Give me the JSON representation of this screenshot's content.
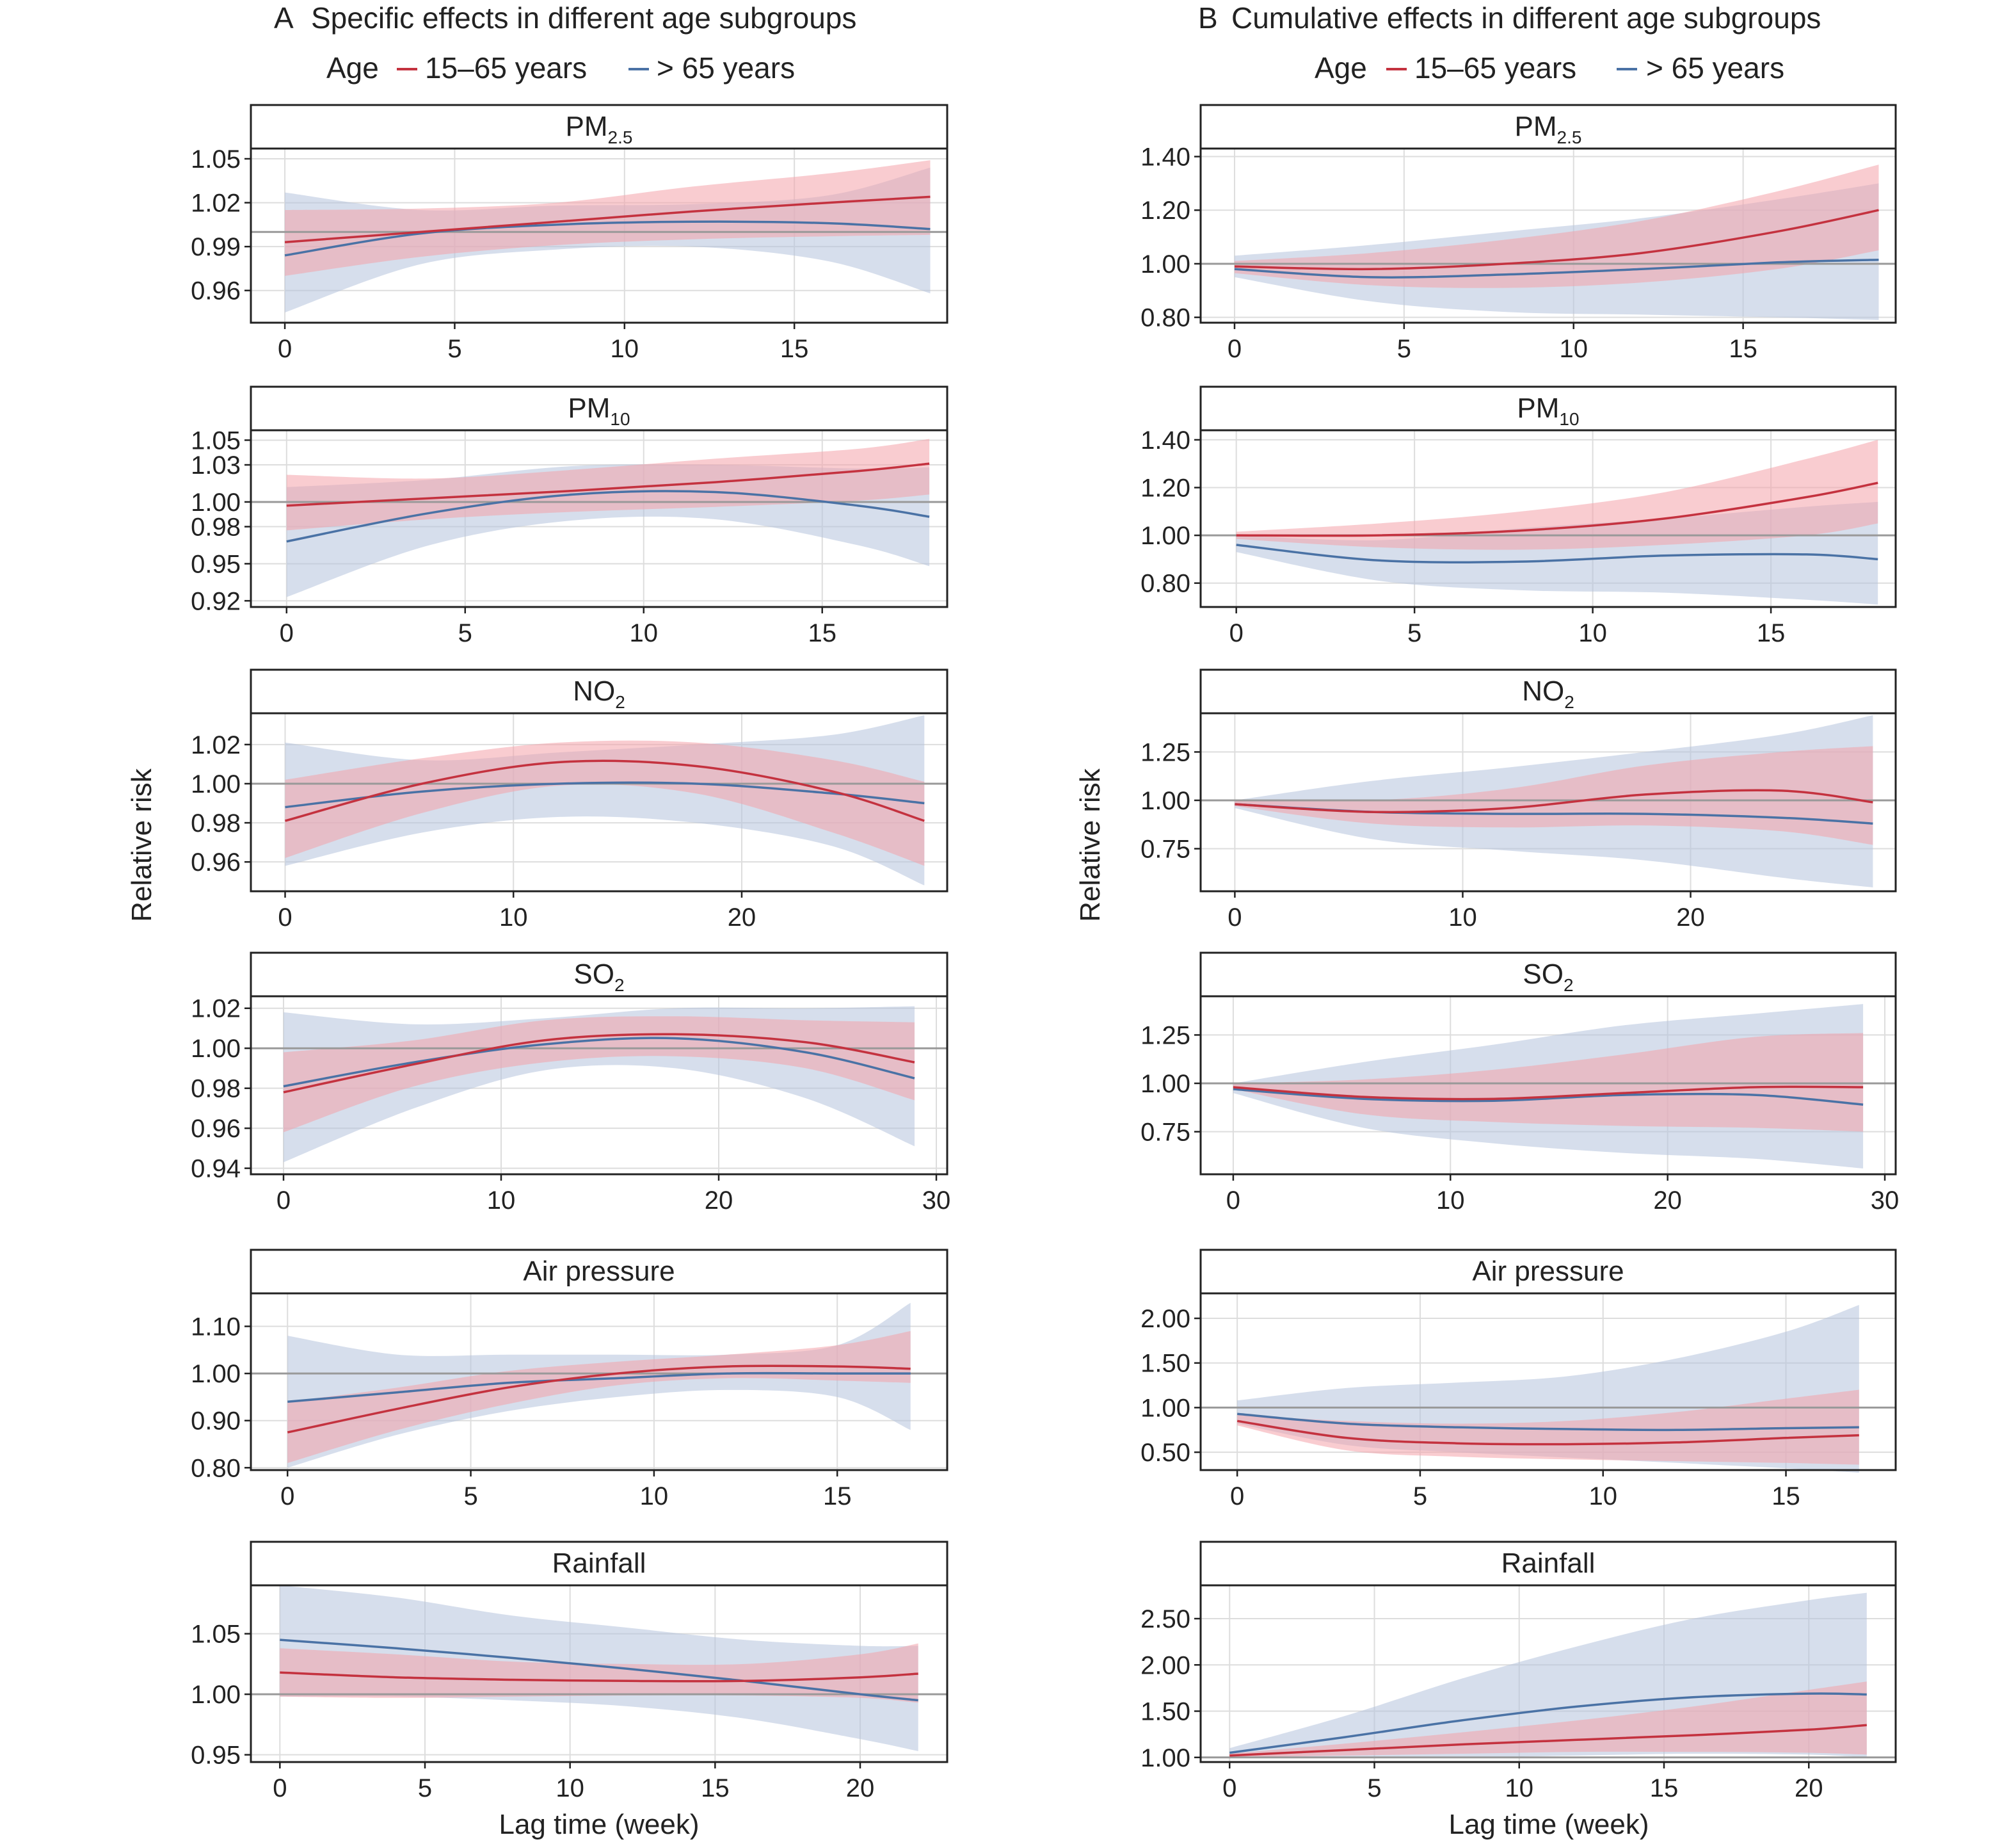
{
  "figure": {
    "ylabel": "Relative risk",
    "xlabel": "Lag time (week)"
  },
  "columns": [
    {
      "label": "A",
      "title": "Specific effects in different age subgroups"
    },
    {
      "label": "B",
      "title": "Cumulative effects in different age subgroups"
    }
  ],
  "legend": {
    "title": "Age",
    "items": [
      {
        "label": "15–65 years",
        "color": "#c4323f"
      },
      {
        "label": "> 65 years",
        "color": "#4a72a5"
      }
    ]
  },
  "colors": {
    "young_line": "#c4323f",
    "young_band": "#f4a3aa",
    "old_line": "#4a72a5",
    "old_band": "#b4c3dc",
    "reference_line": "#999999",
    "grid": "#dddddd"
  },
  "chart_data": [
    {
      "type": "line",
      "column": "A",
      "title": "PM",
      "title_sub": "2.5",
      "xlim": [
        -1,
        19.5
      ],
      "ylim": [
        0.938,
        1.057
      ],
      "xticks": [
        0,
        5,
        10,
        15
      ],
      "yticks": [
        0.96,
        0.99,
        1.02,
        1.05
      ],
      "ytick_decimals": 2,
      "reference": 1.0,
      "x": [
        0,
        4,
        8,
        12,
        16,
        19
      ],
      "series": [
        {
          "name": "15–65 years",
          "values": [
            0.993,
            1.0,
            1.007,
            1.014,
            1.02,
            1.024
          ],
          "lower": [
            0.97,
            0.983,
            0.991,
            0.995,
            0.997,
            0.998
          ],
          "upper": [
            1.015,
            1.016,
            1.02,
            1.031,
            1.04,
            1.049
          ]
        },
        {
          "name": "> 65 years",
          "values": [
            0.984,
            0.999,
            1.005,
            1.007,
            1.006,
            1.002
          ],
          "lower": [
            0.945,
            0.978,
            0.988,
            0.99,
            0.98,
            0.958
          ],
          "upper": [
            1.027,
            1.015,
            1.018,
            1.019,
            1.025,
            1.044
          ]
        }
      ]
    },
    {
      "type": "line",
      "column": "B",
      "title": "PM",
      "title_sub": "2.5",
      "xlim": [
        -1,
        19.5
      ],
      "ylim": [
        0.78,
        1.43
      ],
      "xticks": [
        0,
        5,
        10,
        15
      ],
      "yticks": [
        0.8,
        1.0,
        1.2,
        1.4
      ],
      "ytick_decimals": 2,
      "reference": 1.0,
      "x": [
        0,
        4,
        8,
        12,
        16,
        19
      ],
      "series": [
        {
          "name": "15–65 years",
          "values": [
            0.99,
            0.98,
            1.0,
            1.04,
            1.12,
            1.2
          ],
          "lower": [
            0.965,
            0.92,
            0.91,
            0.93,
            0.98,
            1.05
          ],
          "upper": [
            1.01,
            1.04,
            1.09,
            1.16,
            1.27,
            1.37
          ]
        },
        {
          "name": "> 65 years",
          "values": [
            0.98,
            0.95,
            0.96,
            0.98,
            1.005,
            1.015
          ],
          "lower": [
            0.95,
            0.86,
            0.82,
            0.81,
            0.8,
            0.79
          ],
          "upper": [
            1.03,
            1.07,
            1.12,
            1.17,
            1.24,
            1.3
          ]
        }
      ]
    },
    {
      "type": "line",
      "column": "A",
      "title": "PM",
      "title_sub": "10",
      "xlim": [
        -1,
        18.5
      ],
      "ylim": [
        0.915,
        1.058
      ],
      "xticks": [
        0,
        5,
        10,
        15
      ],
      "yticks": [
        0.92,
        0.95,
        0.98,
        1.0,
        1.03,
        1.05
      ],
      "ytick_decimals": 2,
      "reference": 1.0,
      "x": [
        0,
        4,
        8,
        12,
        16,
        18
      ],
      "series": [
        {
          "name": "15–65 years",
          "values": [
            0.997,
            1.003,
            1.009,
            1.016,
            1.025,
            1.031
          ],
          "lower": [
            0.977,
            0.986,
            0.992,
            0.996,
            1.001,
            1.006
          ],
          "upper": [
            1.022,
            1.019,
            1.026,
            1.035,
            1.043,
            1.051
          ]
        },
        {
          "name": "> 65 years",
          "values": [
            0.968,
            0.991,
            1.006,
            1.008,
            0.997,
            0.988
          ],
          "lower": [
            0.923,
            0.965,
            0.985,
            0.986,
            0.965,
            0.948
          ],
          "upper": [
            1.012,
            1.018,
            1.029,
            1.03,
            1.027,
            1.028
          ]
        }
      ]
    },
    {
      "type": "line",
      "column": "B",
      "title": "PM",
      "title_sub": "10",
      "xlim": [
        -1,
        18.5
      ],
      "ylim": [
        0.7,
        1.44
      ],
      "xticks": [
        0,
        5,
        10,
        15
      ],
      "yticks": [
        0.8,
        1.0,
        1.2,
        1.4
      ],
      "ytick_decimals": 2,
      "reference": 1.0,
      "x": [
        0,
        4,
        8,
        12,
        16,
        18
      ],
      "series": [
        {
          "name": "15–65 years",
          "values": [
            1.0,
            1.0,
            1.02,
            1.07,
            1.16,
            1.22
          ],
          "lower": [
            0.985,
            0.95,
            0.94,
            0.96,
            1.0,
            1.05
          ],
          "upper": [
            1.015,
            1.05,
            1.1,
            1.18,
            1.32,
            1.4
          ]
        },
        {
          "name": "> 65 years",
          "values": [
            0.96,
            0.895,
            0.89,
            0.915,
            0.92,
            0.9
          ],
          "lower": [
            0.93,
            0.81,
            0.77,
            0.76,
            0.73,
            0.71
          ],
          "upper": [
            1.0,
            0.98,
            1.03,
            1.07,
            1.12,
            1.14
          ]
        }
      ]
    },
    {
      "type": "line",
      "column": "A",
      "title": "NO",
      "title_sub": "2",
      "xlim": [
        -1.5,
        29
      ],
      "ylim": [
        0.945,
        1.036
      ],
      "xticks": [
        0,
        10,
        20
      ],
      "yticks": [
        0.96,
        0.98,
        1.0,
        1.02
      ],
      "ytick_decimals": 2,
      "reference": 1.0,
      "x": [
        0,
        6,
        12,
        18,
        24,
        28
      ],
      "series": [
        {
          "name": "15–65 years",
          "values": [
            0.981,
            1.0,
            1.011,
            1.009,
            0.996,
            0.981
          ],
          "lower": [
            0.962,
            0.985,
            0.999,
            0.995,
            0.975,
            0.958
          ],
          "upper": [
            1.002,
            1.013,
            1.021,
            1.021,
            1.012,
            1.001
          ]
        },
        {
          "name": "> 65 years",
          "values": [
            0.988,
            0.996,
            1.0,
            1.0,
            0.995,
            0.99
          ],
          "lower": [
            0.958,
            0.975,
            0.983,
            0.98,
            0.968,
            0.948
          ],
          "upper": [
            1.021,
            1.012,
            1.016,
            1.02,
            1.025,
            1.035
          ]
        }
      ]
    },
    {
      "type": "line",
      "column": "B",
      "title": "NO",
      "title_sub": "2",
      "xlim": [
        -1.5,
        29
      ],
      "ylim": [
        0.53,
        1.45
      ],
      "xticks": [
        0,
        10,
        20
      ],
      "yticks": [
        0.75,
        1.0,
        1.25
      ],
      "ytick_decimals": 2,
      "reference": 1.0,
      "x": [
        0,
        6,
        12,
        18,
        24,
        28
      ],
      "series": [
        {
          "name": "15–65 years",
          "values": [
            0.98,
            0.94,
            0.96,
            1.03,
            1.05,
            0.99
          ],
          "lower": [
            0.97,
            0.88,
            0.86,
            0.87,
            0.84,
            0.77
          ],
          "upper": [
            1.0,
            1.0,
            1.06,
            1.18,
            1.25,
            1.28
          ]
        },
        {
          "name": "> 65 years",
          "values": [
            0.98,
            0.94,
            0.93,
            0.93,
            0.91,
            0.88
          ],
          "lower": [
            0.96,
            0.8,
            0.74,
            0.69,
            0.6,
            0.55
          ],
          "upper": [
            1.0,
            1.1,
            1.17,
            1.25,
            1.34,
            1.44
          ]
        }
      ]
    },
    {
      "type": "line",
      "column": "A",
      "title": "SO",
      "title_sub": "2",
      "xlim": [
        -1.5,
        30.5
      ],
      "ylim": [
        0.937,
        1.026
      ],
      "xticks": [
        0,
        10,
        20,
        30
      ],
      "yticks": [
        0.94,
        0.96,
        0.98,
        1.0,
        1.02
      ],
      "ytick_decimals": 2,
      "reference": 1.0,
      "x": [
        0,
        6,
        12,
        18,
        24,
        29
      ],
      "series": [
        {
          "name": "15–65 years",
          "values": [
            0.978,
            0.992,
            1.004,
            1.007,
            1.003,
            0.993
          ],
          "lower": [
            0.958,
            0.981,
            0.993,
            0.996,
            0.99,
            0.974
          ],
          "upper": [
            0.998,
            1.004,
            1.014,
            1.016,
            1.014,
            1.013
          ]
        },
        {
          "name": "> 65 years",
          "values": [
            0.981,
            0.993,
            1.002,
            1.005,
            0.998,
            0.985
          ],
          "lower": [
            0.943,
            0.97,
            0.989,
            0.99,
            0.975,
            0.951
          ],
          "upper": [
            1.018,
            1.012,
            1.015,
            1.02,
            1.02,
            1.021
          ]
        }
      ]
    },
    {
      "type": "line",
      "column": "B",
      "title": "SO",
      "title_sub": "2",
      "xlim": [
        -1.5,
        30.5
      ],
      "ylim": [
        0.53,
        1.45
      ],
      "xticks": [
        0,
        10,
        20,
        30
      ],
      "yticks": [
        0.75,
        1.0,
        1.25
      ],
      "ytick_decimals": 2,
      "reference": 1.0,
      "x": [
        0,
        6,
        12,
        18,
        24,
        29
      ],
      "series": [
        {
          "name": "15–65 years",
          "values": [
            0.98,
            0.93,
            0.92,
            0.95,
            0.98,
            0.98
          ],
          "lower": [
            0.97,
            0.84,
            0.8,
            0.78,
            0.77,
            0.75
          ],
          "upper": [
            1.0,
            1.02,
            1.07,
            1.15,
            1.24,
            1.26
          ]
        },
        {
          "name": "> 65 years",
          "values": [
            0.97,
            0.92,
            0.91,
            0.94,
            0.94,
            0.89
          ],
          "lower": [
            0.95,
            0.77,
            0.69,
            0.64,
            0.61,
            0.56
          ],
          "upper": [
            1.0,
            1.11,
            1.2,
            1.3,
            1.36,
            1.41
          ]
        }
      ]
    },
    {
      "type": "line",
      "column": "A",
      "title": "Air pressure",
      "xlim": [
        -1,
        18
      ],
      "ylim": [
        0.795,
        1.17
      ],
      "xticks": [
        0,
        5,
        10,
        15
      ],
      "yticks": [
        0.8,
        0.9,
        1.0,
        1.1
      ],
      "ytick_decimals": 2,
      "reference": 1.0,
      "x": [
        0,
        3,
        6,
        9,
        12,
        15,
        17
      ],
      "series": [
        {
          "name": "15–65 years",
          "values": [
            0.875,
            0.925,
            0.97,
            1.0,
            1.015,
            1.015,
            1.01
          ],
          "lower": [
            0.81,
            0.88,
            0.935,
            0.975,
            0.99,
            0.985,
            0.98
          ],
          "upper": [
            0.94,
            0.97,
            1.005,
            1.025,
            1.04,
            1.06,
            1.09
          ]
        },
        {
          "name": "> 65 years",
          "values": [
            0.94,
            0.96,
            0.98,
            0.99,
            1.0,
            1.0,
            1.0
          ],
          "lower": [
            0.8,
            0.87,
            0.92,
            0.95,
            0.965,
            0.95,
            0.88
          ],
          "upper": [
            1.08,
            1.04,
            1.04,
            1.04,
            1.04,
            1.06,
            1.15
          ]
        }
      ]
    },
    {
      "type": "line",
      "column": "B",
      "title": "Air pressure",
      "xlim": [
        -1,
        18
      ],
      "ylim": [
        0.3,
        2.28
      ],
      "xticks": [
        0,
        5,
        10,
        15
      ],
      "yticks": [
        0.5,
        1.0,
        1.5,
        2.0
      ],
      "ytick_decimals": 2,
      "reference": 1.0,
      "x": [
        0,
        3,
        6,
        9,
        12,
        15,
        17
      ],
      "series": [
        {
          "name": "15–65 years",
          "values": [
            0.85,
            0.66,
            0.6,
            0.59,
            0.61,
            0.66,
            0.69
          ],
          "lower": [
            0.8,
            0.52,
            0.45,
            0.42,
            0.4,
            0.38,
            0.36
          ],
          "upper": [
            0.92,
            0.85,
            0.82,
            0.85,
            0.95,
            1.1,
            1.2
          ]
        },
        {
          "name": "> 65 years",
          "values": [
            0.93,
            0.82,
            0.78,
            0.76,
            0.75,
            0.77,
            0.78
          ],
          "lower": [
            0.82,
            0.58,
            0.5,
            0.44,
            0.38,
            0.32,
            0.27
          ],
          "upper": [
            1.08,
            1.22,
            1.28,
            1.35,
            1.55,
            1.85,
            2.15
          ]
        }
      ]
    },
    {
      "type": "line",
      "column": "A",
      "title": "Rainfall",
      "xlim": [
        -1,
        23
      ],
      "ylim": [
        0.944,
        1.09
      ],
      "xticks": [
        0,
        5,
        10,
        15,
        20
      ],
      "yticks": [
        0.95,
        1.0,
        1.05
      ],
      "ytick_decimals": 2,
      "reference": 1.0,
      "x": [
        0,
        4,
        8,
        12,
        16,
        20,
        22
      ],
      "series": [
        {
          "name": "15–65 years",
          "values": [
            1.018,
            1.014,
            1.012,
            1.011,
            1.011,
            1.014,
            1.017
          ],
          "lower": [
            0.998,
            0.997,
            0.998,
            0.999,
            0.999,
            0.997,
            0.993
          ],
          "upper": [
            1.038,
            1.033,
            1.027,
            1.025,
            1.025,
            1.033,
            1.042
          ]
        },
        {
          "name": "> 65 years",
          "values": [
            1.045,
            1.038,
            1.03,
            1.021,
            1.011,
            1.0,
            0.995
          ],
          "lower": [
            0.998,
            0.998,
            0.995,
            0.99,
            0.98,
            0.963,
            0.953
          ],
          "upper": [
            1.09,
            1.08,
            1.065,
            1.055,
            1.045,
            1.04,
            1.04
          ]
        }
      ]
    },
    {
      "type": "line",
      "column": "B",
      "title": "Rainfall",
      "xlim": [
        -1,
        23
      ],
      "ylim": [
        0.95,
        2.86
      ],
      "xticks": [
        0,
        5,
        10,
        15,
        20
      ],
      "yticks": [
        1.0,
        1.5,
        2.0,
        2.5
      ],
      "ytick_decimals": 2,
      "reference": 1.0,
      "x": [
        0,
        4,
        8,
        12,
        16,
        20,
        22
      ],
      "series": [
        {
          "name": "15–65 years",
          "values": [
            1.02,
            1.08,
            1.14,
            1.19,
            1.24,
            1.3,
            1.35
          ],
          "lower": [
            1.0,
            1.02,
            1.04,
            1.06,
            1.06,
            1.05,
            1.03
          ],
          "upper": [
            1.04,
            1.15,
            1.27,
            1.4,
            1.55,
            1.73,
            1.82
          ]
        },
        {
          "name": "> 65 years",
          "values": [
            1.05,
            1.22,
            1.4,
            1.55,
            1.65,
            1.69,
            1.68
          ],
          "lower": [
            1.0,
            1.0,
            1.0,
            1.02,
            1.04,
            1.03,
            1.0
          ],
          "upper": [
            1.1,
            1.45,
            1.85,
            2.2,
            2.5,
            2.7,
            2.78
          ]
        }
      ]
    }
  ]
}
